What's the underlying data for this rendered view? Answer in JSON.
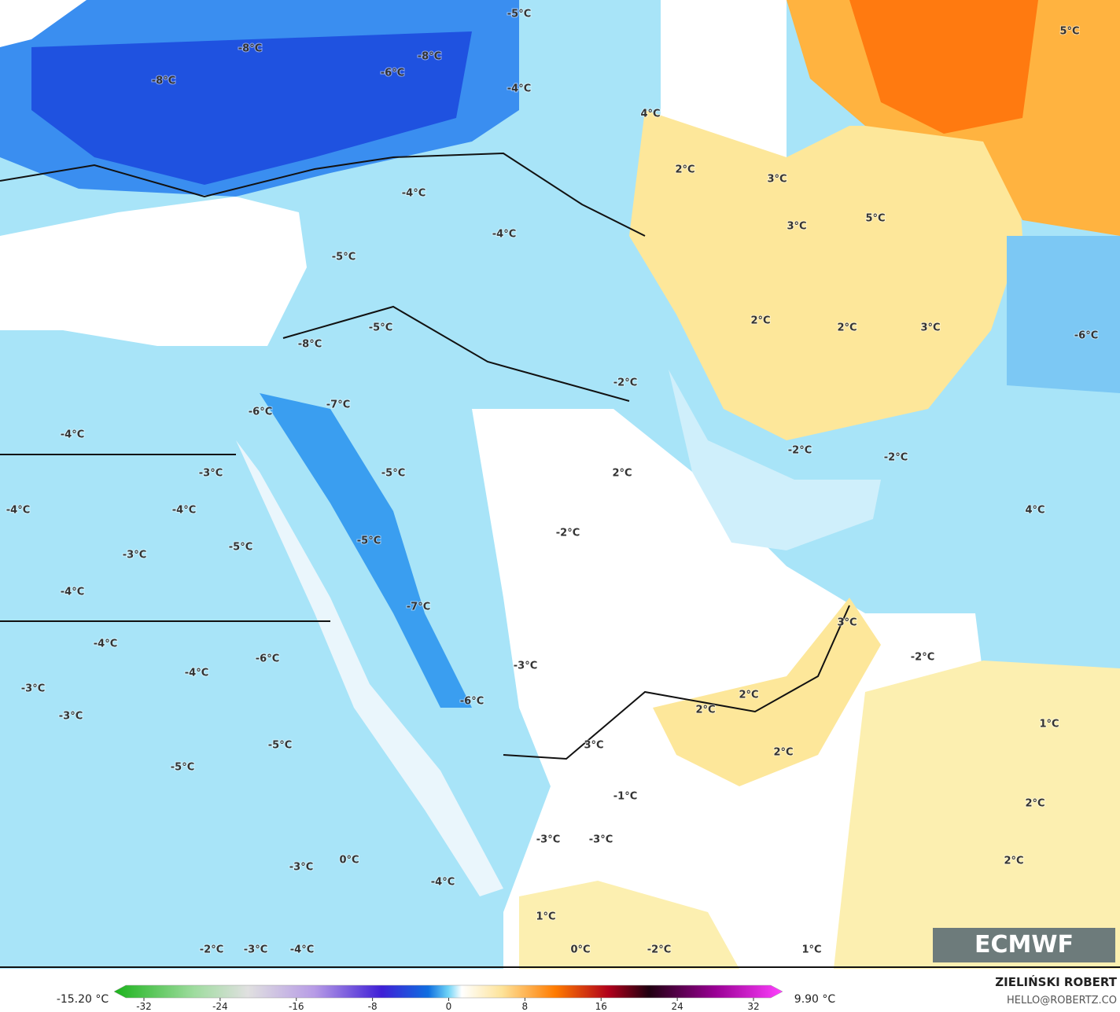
{
  "map": {
    "labels": [
      "-8°C",
      "-8°C",
      "-8°C",
      "-6°C",
      "-5°C",
      "-4°C",
      "4°C",
      "5°C",
      "2°C",
      "3°C",
      "3°C",
      "5°C",
      "-4°C",
      "-4°C",
      "-5°C",
      "-5°C",
      "-8°C",
      "2°C",
      "2°C",
      "3°C",
      "-6°C",
      "-2°C",
      "-7°C",
      "-6°C",
      "-4°C",
      "-2°C",
      "-2°C",
      "-3°C",
      "-5°C",
      "2°C",
      "-4°C",
      "-4°C",
      "4°C",
      "-2°C",
      "-5°C",
      "-5°C",
      "-3°C",
      "-4°C",
      "-7°C",
      "3°C",
      "-4°C",
      "-6°C",
      "-2°C",
      "-3°C",
      "-4°C",
      "-3°C",
      "2°C",
      "2°C",
      "-3°C",
      "-6°C",
      "1°C",
      "3°C",
      "-5°C",
      "-5°C",
      "2°C",
      "-1°C",
      "2°C",
      "-3°C",
      "-3°C",
      "0°C",
      "-3°C",
      "2°C",
      "-4°C",
      "1°C",
      "-2°C",
      "-3°C",
      "-4°C",
      "0°C",
      "-2°C",
      "1°C"
    ]
  },
  "colorbar": {
    "min_label": "-15.20 °C",
    "max_label": "9.90 °C",
    "ticks": [
      -32,
      -24,
      -16,
      -8,
      0,
      8,
      16,
      24,
      32
    ]
  },
  "credit": {
    "author": "ZIELIŃSKI ROBERT",
    "email": "HELLO@ROBERTZ.CO"
  },
  "logo": "ECMWF"
}
